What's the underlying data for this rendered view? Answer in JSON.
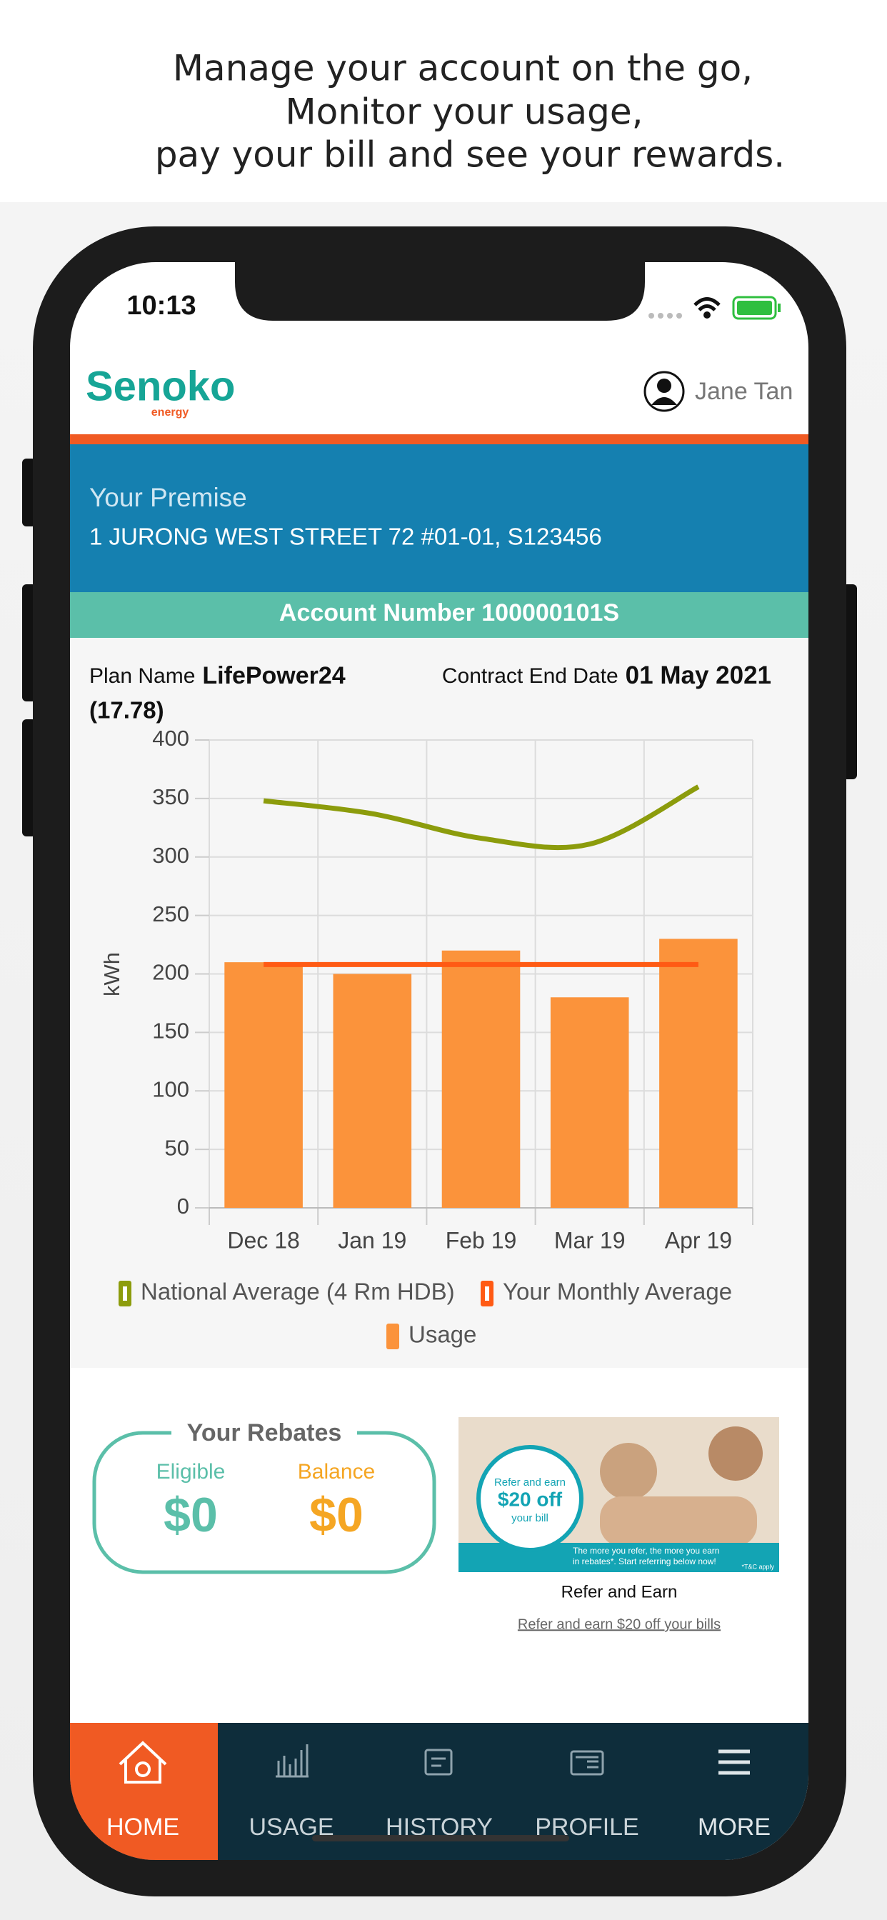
{
  "header": {
    "lines": [
      "Manage your account on the go,",
      "Monitor your usage,",
      "pay your bill and see your rewards."
    ]
  },
  "status_bar": {
    "time": "10:13"
  },
  "app_header": {
    "logo": "Senoko",
    "logo_sub": "energy",
    "user": "Jane Tan"
  },
  "premise": {
    "label": "Your Premise",
    "address": "1 JURONG WEST STREET 72 #01-01, S123456"
  },
  "account": {
    "text": "Account Number 100000101S"
  },
  "plan": {
    "name_label": "Plan Name",
    "name": "LifePower24",
    "rate": "(17.78)",
    "contract_label": "Contract End Date",
    "contract_date": "01 May 2021"
  },
  "chart_data": {
    "type": "bar",
    "y_label": "kWh",
    "categories": [
      "Dec 18",
      "Jan 19",
      "Feb 19",
      "Mar 19",
      "Apr 19"
    ],
    "series": [
      {
        "name": "National Average (4 Rm HDB)",
        "type": "line",
        "color": "#8c9c0c",
        "values": [
          348,
          337,
          316,
          311,
          360
        ]
      },
      {
        "name": "Your Monthly Average",
        "type": "line",
        "color": "#ff5a14",
        "values": [
          208,
          208,
          208,
          208,
          208
        ]
      },
      {
        "name": "Usage",
        "type": "bar",
        "color": "#fb933b",
        "values": [
          210,
          200,
          220,
          180,
          230
        ]
      }
    ],
    "ylim": [
      0,
      400
    ],
    "yticks": [
      0,
      50,
      100,
      150,
      200,
      250,
      300,
      350,
      400
    ],
    "grid": true
  },
  "rebates": {
    "title": "Your Rebates",
    "eligible_label": "Eligible",
    "eligible_value": "$0",
    "balance_label": "Balance",
    "balance_value": "$0"
  },
  "refer": {
    "badge_line1": "Refer and earn",
    "badge_amount": "$20 off",
    "badge_line2": "your bill",
    "banner_line1": "The more you refer, the more you earn",
    "banner_line2": "in rebates*. Start referring below now!",
    "banner_note": "*T&C apply",
    "title": "Refer and Earn",
    "link": "Refer and earn $20 off your bills"
  },
  "nav": {
    "items": [
      "HOME",
      "USAGE",
      "HISTORY",
      "PROFILE",
      "MORE"
    ]
  }
}
